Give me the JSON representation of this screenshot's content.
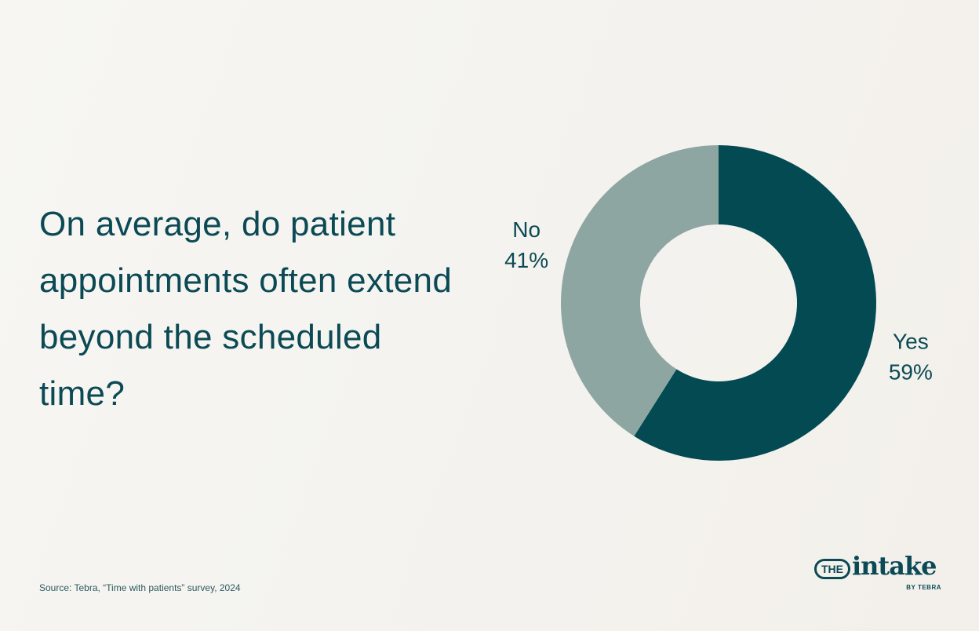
{
  "chart_data": {
    "type": "donut",
    "title": "On average, do patient appointments often extend beyond the scheduled time?",
    "categories": [
      "Yes",
      "No"
    ],
    "values": [
      59,
      41
    ],
    "value_labels": [
      "59%",
      "41%"
    ],
    "colors": [
      "#034a53",
      "#8ea6a2"
    ],
    "source": "Source: Tebra, “Time with patients” survey, 2024"
  },
  "brand": {
    "prefix": "THE",
    "name": "intake",
    "byline": "BY TEBRA"
  }
}
